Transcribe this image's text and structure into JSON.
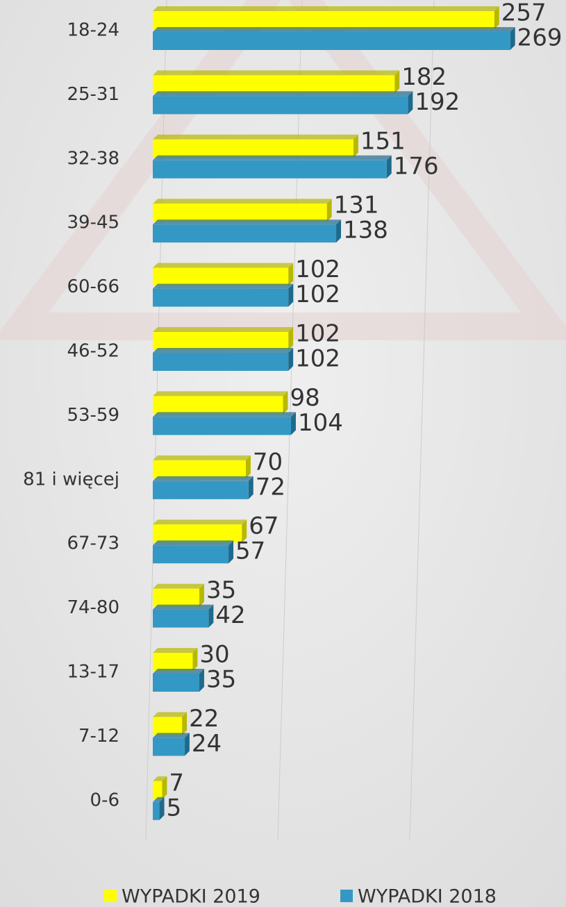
{
  "chart_data": {
    "type": "bar",
    "orientation": "horizontal",
    "categories": [
      "18-24",
      "25-31",
      "32-38",
      "39-45",
      "60-66",
      "46-52",
      "53-59",
      "81 i więcej",
      "67-73",
      "74-80",
      "13-17",
      "7-12",
      "0-6"
    ],
    "series": [
      {
        "name": "WYPADKI 2019",
        "color": "#ffff00",
        "values": [
          257,
          182,
          151,
          131,
          102,
          102,
          98,
          70,
          67,
          35,
          30,
          22,
          7
        ]
      },
      {
        "name": "WYPADKI 2018",
        "color": "#3399c4",
        "values": [
          269,
          192,
          176,
          138,
          102,
          102,
          104,
          72,
          57,
          42,
          35,
          24,
          5
        ]
      }
    ],
    "xlim": [
      0,
      300
    ],
    "legend": "bottom"
  }
}
